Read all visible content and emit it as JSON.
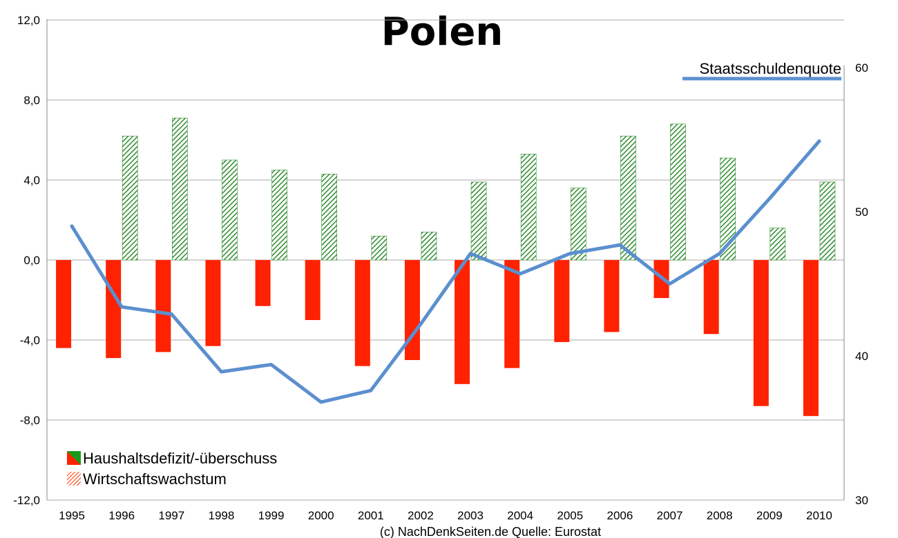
{
  "chart_data": {
    "type": "bar",
    "title": "Polen",
    "categories": [
      "1995",
      "1996",
      "1997",
      "1998",
      "1999",
      "2000",
      "2001",
      "2002",
      "2003",
      "2004",
      "2005",
      "2006",
      "2007",
      "2008",
      "2009",
      "2010"
    ],
    "series": [
      {
        "name": "Haushaltsdefizit/-überschuss",
        "type": "bar",
        "axis": "left",
        "color": "#ff2200",
        "values": [
          -4.4,
          -4.9,
          -4.6,
          -4.3,
          -2.3,
          -3.0,
          -5.3,
          -5.0,
          -6.2,
          -5.4,
          -4.1,
          -3.6,
          -1.9,
          -3.7,
          -7.3,
          -7.8
        ]
      },
      {
        "name": "Wirtschaftswachstum",
        "type": "bar",
        "axis": "left",
        "color": "#2e8b2e",
        "pattern": "diagonal-hatch",
        "values": [
          null,
          6.2,
          7.1,
          5.0,
          4.5,
          4.3,
          1.2,
          1.4,
          3.9,
          5.3,
          3.6,
          6.2,
          6.8,
          5.1,
          1.6,
          3.9
        ]
      },
      {
        "name": "Staatsschuldenquote",
        "type": "line",
        "axis": "right",
        "color": "#5b8fcf",
        "values": [
          49.0,
          43.4,
          42.9,
          38.9,
          39.4,
          36.8,
          37.6,
          42.2,
          47.1,
          45.7,
          47.1,
          47.7,
          45.0,
          47.1,
          50.9,
          54.9
        ]
      }
    ],
    "y_left": {
      "ylim": [
        -12,
        12
      ],
      "ticks": [
        "12,0",
        "8,0",
        "4,0",
        "0,0",
        "-4,0",
        "-8,0",
        "-12,0"
      ],
      "tick_values": [
        12,
        8,
        4,
        0,
        -4,
        -8,
        -12
      ]
    },
    "y_right": {
      "ylim": [
        30,
        60
      ],
      "ticks": [
        "60",
        "50",
        "40",
        "30"
      ],
      "tick_values": [
        60,
        50,
        40,
        30
      ]
    },
    "legend": {
      "position": "bottom-left",
      "items": [
        "Haushaltsdefizit/-überschuss",
        "Wirtschaftswachstum"
      ]
    },
    "line_label": "Staatsschuldenquote",
    "line_label_position": "top-right",
    "footer": "(c) NachDenkSeiten.de Quelle: Eurostat",
    "grid": true
  }
}
